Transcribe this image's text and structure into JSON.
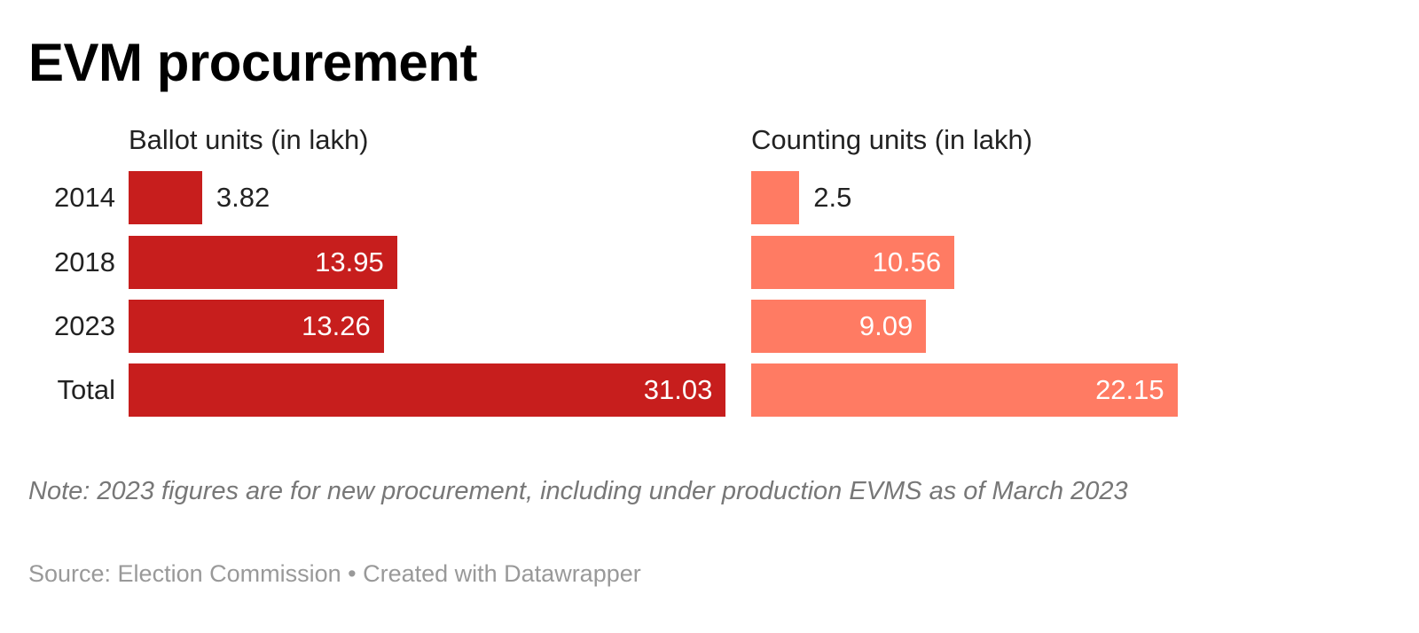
{
  "title": "EVM procurement",
  "chart_data": {
    "type": "bar",
    "orientation": "horizontal",
    "categories": [
      "2014",
      "2018",
      "2023",
      "Total"
    ],
    "series": [
      {
        "name": "Ballot units (in lakh)",
        "values": [
          3.82,
          13.95,
          13.26,
          31.03
        ],
        "labels": [
          "3.82",
          "13.95",
          "13.26",
          "31.03"
        ],
        "color": "#c71e1d"
      },
      {
        "name": "Counting units (in lakh)",
        "values": [
          2.5,
          10.56,
          9.09,
          22.15
        ],
        "labels": [
          "2.5",
          "10.56",
          "9.09",
          "22.15"
        ],
        "color": "#ff7b63"
      }
    ]
  },
  "note": "Note: 2023 figures are for new procurement, including under production EVMS as of March 2023",
  "source": "Source: Election Commission • Created with Datawrapper"
}
